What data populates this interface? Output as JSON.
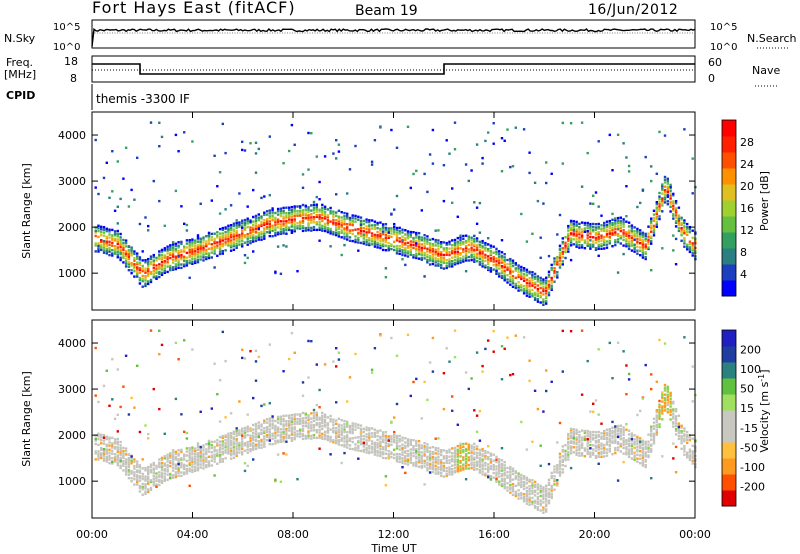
{
  "header": {
    "station": "Fort Hays East (fitACF)",
    "beam": "Beam 19",
    "date": "16/Jun/2012"
  },
  "noise_panel": {
    "left_label": "N.Sky",
    "right_label": "N.Search",
    "left_ticks": [
      "10^5",
      "10^0"
    ],
    "right_ticks": [
      "10^5",
      "10^0"
    ]
  },
  "freq_panel": {
    "left_label_1": "Freq.",
    "left_label_2": "[MHz]",
    "left_ticks": [
      "18",
      "8"
    ],
    "right_label": "Nave",
    "right_ticks": [
      "60",
      "0"
    ],
    "cpid_label": "CPID",
    "cpid_text": "themis -3300 IF"
  },
  "time_axis": {
    "label": "Time UT",
    "ticks": [
      "00:00",
      "04:00",
      "08:00",
      "12:00",
      "16:00",
      "20:00",
      "00:00"
    ]
  },
  "colors": {
    "power_scale": [
      "#0000ff",
      "#1b3fbf",
      "#2b7f80",
      "#33a060",
      "#66c040",
      "#a0d030",
      "#e0c020",
      "#ff9000",
      "#ff5000",
      "#ff2000",
      "#ff0000"
    ],
    "velocity_scale": [
      "#e00000",
      "#ff5000",
      "#ff9a20",
      "#ffc040",
      "#c8c8c0",
      "#c8c8c0",
      "#9fe060",
      "#60c040",
      "#2b8080",
      "#203ea0",
      "#2020c0"
    ]
  },
  "chart_data": [
    {
      "type": "heatmap",
      "title": "",
      "xlabel": "Time UT",
      "ylabel": "Slant Range [km]",
      "xlim": [
        0,
        24
      ],
      "ylim": [
        200,
        4500
      ],
      "yticks": [
        "1000",
        "2000",
        "3000",
        "4000"
      ],
      "colorbar": {
        "label": "Power [dB]",
        "ticks": [
          "4",
          "8",
          "12",
          "16",
          "20",
          "24",
          "28"
        ]
      },
      "main_band_center_km": {
        "x": [
          0,
          1,
          2,
          3,
          4,
          5,
          6,
          7,
          8,
          9,
          10,
          11,
          12,
          13,
          14,
          15,
          16,
          17,
          18,
          19,
          20,
          21,
          22,
          22.8,
          23.5,
          24
        ],
        "values": [
          1800,
          1650,
          1000,
          1350,
          1500,
          1700,
          1900,
          2100,
          2200,
          2250,
          2050,
          1900,
          1750,
          1600,
          1400,
          1600,
          1300,
          900,
          600,
          1900,
          1800,
          1950,
          1600,
          2900,
          1900,
          1600
        ]
      }
    },
    {
      "type": "heatmap",
      "title": "",
      "xlabel": "Time UT",
      "ylabel": "Slant Range [km]",
      "xlim": [
        0,
        24
      ],
      "ylim": [
        200,
        4500
      ],
      "yticks": [
        "1000",
        "2000",
        "3000",
        "4000"
      ],
      "colorbar": {
        "label": "Velocity [m s^-1]",
        "ticks": [
          "200",
          "100",
          "50",
          "15",
          "-15",
          "-50",
          "-100",
          "-200"
        ]
      }
    }
  ]
}
